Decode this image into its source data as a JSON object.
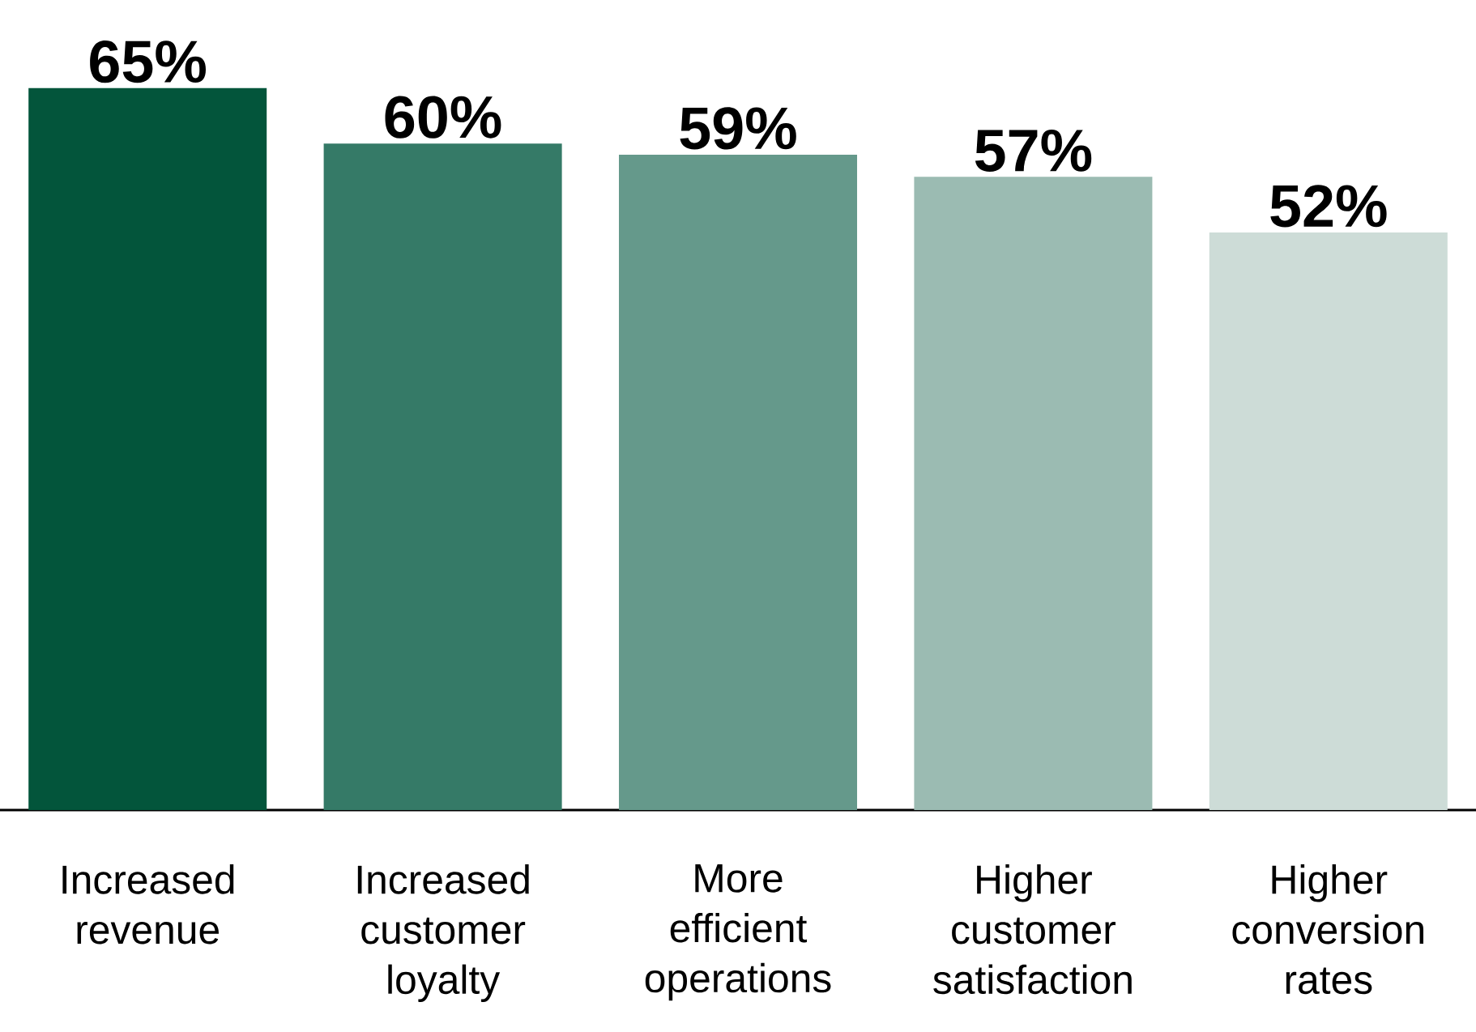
{
  "chart_data": {
    "type": "bar",
    "categories": [
      "Increased revenue",
      "Increased customer loyalty",
      "More efficient operations",
      "Higher customer satisfaction",
      "Higher conversion rates"
    ],
    "values": [
      65,
      60,
      59,
      57,
      52
    ],
    "value_labels": [
      "65%",
      "60%",
      "59%",
      "57%",
      "52%"
    ],
    "colors": [
      "#03553b",
      "#357a67",
      "#65998b",
      "#9bbbb2",
      "#cddcd7"
    ],
    "tick_labels": "x"
  }
}
